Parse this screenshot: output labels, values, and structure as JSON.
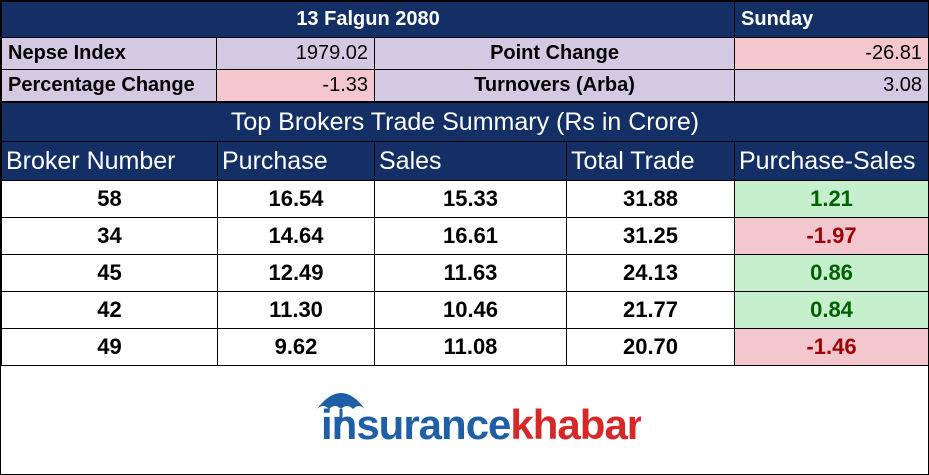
{
  "header": {
    "date": "13 Falgun 2080",
    "day": "Sunday"
  },
  "summary": {
    "rows": [
      [
        "Nepse Index",
        "1979.02",
        "Point Change",
        "-26.81"
      ],
      [
        "Percentage Change",
        "-1.33",
        "Turnovers (Arba)",
        "3.08"
      ]
    ]
  },
  "table": {
    "title": "Top Brokers Trade Summary (Rs in Crore)",
    "columns": [
      "Broker Number",
      "Purchase",
      "Sales",
      "Total Trade",
      "Purchase-Sales"
    ],
    "rows": [
      [
        "58",
        "16.54",
        "15.33",
        "31.88",
        "1.21"
      ],
      [
        "34",
        "14.64",
        "16.61",
        "31.25",
        "-1.97"
      ],
      [
        "45",
        "12.49",
        "11.63",
        "24.13",
        "0.86"
      ],
      [
        "42",
        "11.30",
        "10.46",
        "21.77",
        "0.84"
      ],
      [
        "49",
        "9.62",
        "11.08",
        "20.70",
        "-1.46"
      ]
    ]
  },
  "logo": {
    "part1": "insurance",
    "part2": "khabar"
  }
}
